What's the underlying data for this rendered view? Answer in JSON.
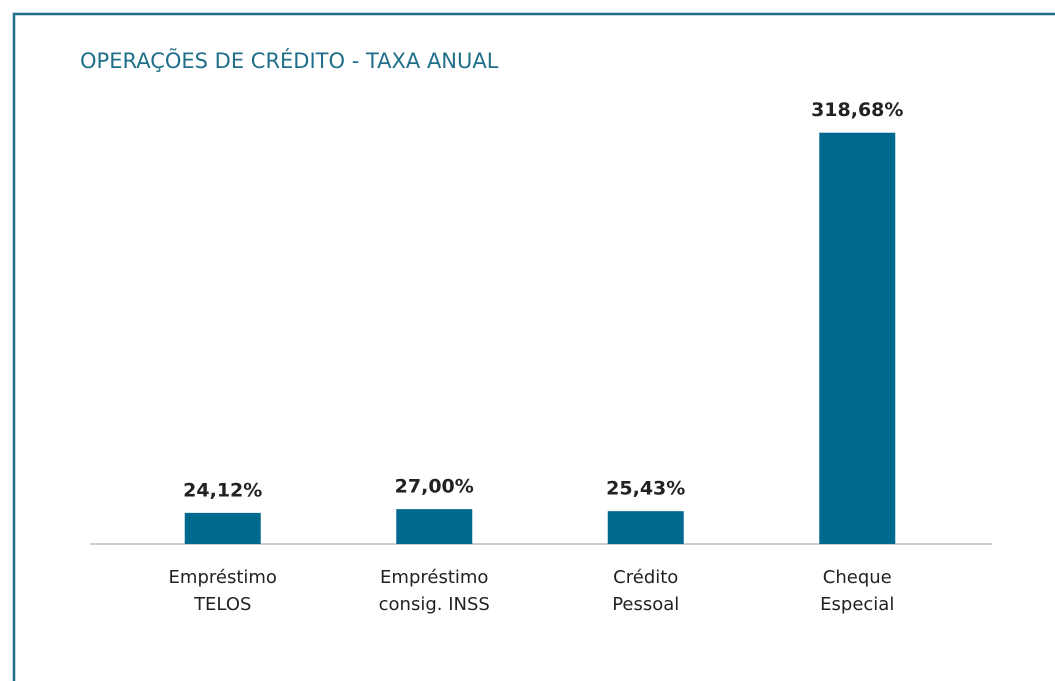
{
  "chart_data": {
    "type": "bar",
    "title": "OPERAÇÕES DE CRÉDITO - TAXA ANUAL",
    "categories": [
      "Empréstimo\nTELOS",
      "Empréstimo\nconsig. INSS",
      "Crédito\nPessoal",
      "Cheque\nEspecial"
    ],
    "values": [
      24.12,
      27.0,
      25.43,
      318.68
    ],
    "value_labels": [
      "24,12%",
      "27,00%",
      "25,43%",
      "318,68%"
    ],
    "color": "#006a8e",
    "ylim": [
      0,
      320
    ]
  }
}
